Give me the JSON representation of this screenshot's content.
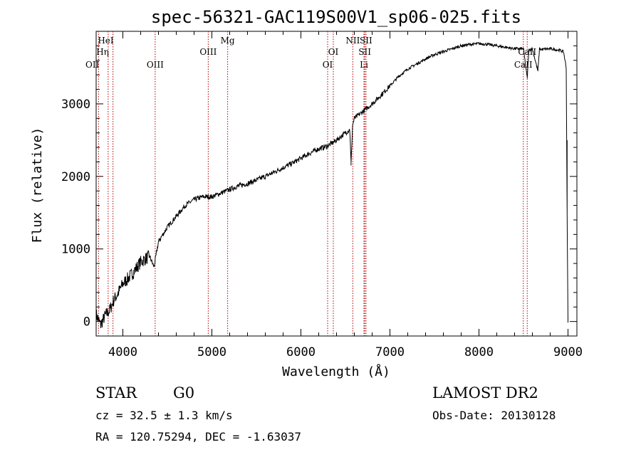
{
  "chart_data": {
    "type": "line",
    "title": "spec-56321-GAC119S00V1_sp06-025.fits",
    "xlabel": "Wavelength (Å)",
    "ylabel": "Flux (relative)",
    "xlim": [
      3700,
      9100
    ],
    "ylim": [
      -200,
      4000
    ],
    "xticks": [
      4000,
      5000,
      6000,
      7000,
      8000,
      9000
    ],
    "yticks": [
      0,
      1000,
      2000,
      3000
    ],
    "grid": false,
    "series": [
      {
        "x": [
          3700,
          3750,
          3800,
          3850,
          3900,
          3950,
          4000,
          4100,
          4200,
          4300,
          4350,
          4400,
          4500,
          4600,
          4700,
          4800,
          4900,
          5000,
          5100,
          5200,
          5300,
          5400,
          5500,
          5600,
          5700,
          5800,
          5900,
          6000,
          6100,
          6200,
          6300,
          6400,
          6500,
          6550,
          6563,
          6580,
          6600,
          6700,
          6800,
          6900,
          7000,
          7100,
          7200,
          7300,
          7400,
          7500,
          7600,
          7700,
          7800,
          7900,
          8000,
          8100,
          8200,
          8300,
          8400,
          8500,
          8542,
          8560,
          8600,
          8662,
          8680,
          8700,
          8800,
          8900,
          8950,
          8980,
          8990,
          9000
        ],
        "y": [
          100,
          -50,
          80,
          150,
          300,
          400,
          520,
          650,
          820,
          900,
          750,
          1100,
          1300,
          1450,
          1600,
          1680,
          1720,
          1720,
          1770,
          1820,
          1870,
          1900,
          1950,
          2000,
          2060,
          2120,
          2180,
          2250,
          2320,
          2380,
          2420,
          2500,
          2600,
          2650,
          2150,
          2700,
          2800,
          2900,
          3000,
          3120,
          3250,
          3380,
          3480,
          3550,
          3620,
          3680,
          3720,
          3760,
          3800,
          3820,
          3830,
          3820,
          3800,
          3780,
          3760,
          3760,
          3350,
          3740,
          3760,
          3450,
          3760,
          3750,
          3760,
          3740,
          3720,
          3500,
          1500,
          -20
        ]
      }
    ],
    "lines": [
      {
        "w": 3727,
        "label": "OII",
        "row": 3,
        "anchor": "end"
      },
      {
        "w": 3835,
        "label": "Hη",
        "row": 2,
        "anchor": "end"
      },
      {
        "w": 3889,
        "label": "HeI",
        "row": 1,
        "anchor": "end"
      },
      {
        "w": 4363,
        "label": "OIII",
        "row": 3,
        "anchor": "middle"
      },
      {
        "w": 4959,
        "label": "OIII",
        "row": 2,
        "anchor": "middle"
      },
      {
        "w": 5177,
        "label": "Mg",
        "row": 1,
        "anchor": "middle"
      },
      {
        "w": 6300,
        "label": "OI",
        "row": 3,
        "anchor": "middle"
      },
      {
        "w": 6364,
        "label": "OI",
        "row": 2,
        "anchor": "middle"
      },
      {
        "w": 6583,
        "label": "NII",
        "row": 1,
        "anchor": "middle"
      },
      {
        "w": 6708,
        "label": "Li",
        "row": 3,
        "anchor": "middle"
      },
      {
        "w": 6717,
        "label": "SII",
        "row": 2,
        "anchor": "middle"
      },
      {
        "w": 6731,
        "label": "SII",
        "row": 1,
        "anchor": "middle"
      },
      {
        "w": 8498,
        "label": "CaII",
        "row": 3,
        "anchor": "middle"
      },
      {
        "w": 8542,
        "label": "CaII",
        "row": 2,
        "anchor": "middle"
      }
    ]
  },
  "info": {
    "class": "STAR",
    "subclass": "G0",
    "survey": "LAMOST DR2",
    "cz": "cz = 32.5 ± 1.3 km/s",
    "obs_date": "Obs-Date: 20130128",
    "radec": "RA = 120.75294, DEC =  -1.63037"
  }
}
